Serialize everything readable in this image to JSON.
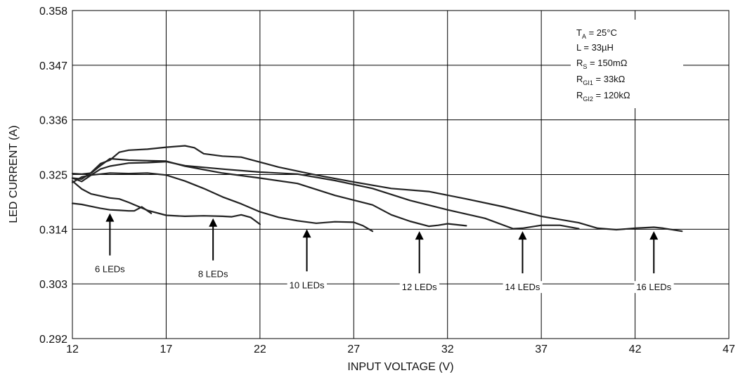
{
  "chart_data": {
    "type": "line",
    "xlabel": "INPUT VOLTAGE (V)",
    "ylabel": "LED CURRENT (A)",
    "xlim": [
      12,
      47
    ],
    "ylim": [
      0.292,
      0.358
    ],
    "x_ticks": [
      "12",
      "17",
      "22",
      "27",
      "32",
      "37",
      "42",
      "47"
    ],
    "y_ticks": [
      "0.292",
      "0.303",
      "0.314",
      "0.325",
      "0.336",
      "0.347",
      "0.358"
    ],
    "grid": true,
    "line_color": "#222222",
    "conditions": [
      {
        "main": "T",
        "sub": "A",
        "rest": " = 25°C"
      },
      {
        "main": "L = 33µH",
        "sub": "",
        "rest": ""
      },
      {
        "main": "R",
        "sub": "S",
        "rest": " = 150mΩ"
      },
      {
        "main": "R",
        "sub": "GI1",
        "rest": " = 33kΩ"
      },
      {
        "main": "R",
        "sub": "GI2",
        "rest": " = 120kΩ"
      }
    ],
    "series": [
      {
        "name": "6 LEDs",
        "label_x": 14,
        "label_y": 0.3059,
        "points": [
          [
            12,
            0.3192
          ],
          [
            12.5,
            0.319
          ],
          [
            13,
            0.3186
          ],
          [
            13.5,
            0.3182
          ],
          [
            14,
            0.3179
          ],
          [
            14.5,
            0.3178
          ],
          [
            15,
            0.3177
          ],
          [
            15.3,
            0.3177
          ],
          [
            15.7,
            0.3185
          ],
          [
            16.2,
            0.3172
          ]
        ]
      },
      {
        "name": "8 LEDs",
        "label_x": 19.5,
        "label_y": 0.3049,
        "points": [
          [
            12,
            0.3237
          ],
          [
            12.5,
            0.3221
          ],
          [
            13,
            0.3211
          ],
          [
            13.5,
            0.3207
          ],
          [
            14,
            0.3203
          ],
          [
            14.5,
            0.3201
          ],
          [
            15,
            0.3194
          ],
          [
            16,
            0.3178
          ],
          [
            17,
            0.3168
          ],
          [
            18,
            0.3166
          ],
          [
            19,
            0.3167
          ],
          [
            20,
            0.3166
          ],
          [
            20.5,
            0.3165
          ],
          [
            21,
            0.3169
          ],
          [
            21.5,
            0.3164
          ],
          [
            22,
            0.315
          ]
        ]
      },
      {
        "name": "10 LEDs",
        "label_x": 24.5,
        "label_y": 0.3027,
        "points": [
          [
            12,
            0.3234
          ],
          [
            12.5,
            0.3245
          ],
          [
            13,
            0.3249
          ],
          [
            13.5,
            0.3251
          ],
          [
            14,
            0.3253
          ],
          [
            15,
            0.3252
          ],
          [
            16,
            0.3253
          ],
          [
            17,
            0.3249
          ],
          [
            18,
            0.3237
          ],
          [
            19,
            0.3222
          ],
          [
            20,
            0.3205
          ],
          [
            21,
            0.3191
          ],
          [
            22,
            0.3175
          ],
          [
            23,
            0.3164
          ],
          [
            24,
            0.3157
          ],
          [
            25,
            0.3152
          ],
          [
            26,
            0.3155
          ],
          [
            27,
            0.3154
          ],
          [
            27.5,
            0.3147
          ],
          [
            28,
            0.3136
          ]
        ]
      },
      {
        "name": "12 LEDs",
        "label_x": 30.5,
        "label_y": 0.3023,
        "points": [
          [
            12,
            0.3252
          ],
          [
            12.5,
            0.3251
          ],
          [
            13,
            0.3253
          ],
          [
            13.5,
            0.3268
          ],
          [
            14,
            0.3282
          ],
          [
            15,
            0.3279
          ],
          [
            16,
            0.3278
          ],
          [
            17,
            0.3277
          ],
          [
            18,
            0.3267
          ],
          [
            20,
            0.3253
          ],
          [
            22,
            0.3243
          ],
          [
            24,
            0.3232
          ],
          [
            26,
            0.3208
          ],
          [
            28,
            0.3189
          ],
          [
            29,
            0.3169
          ],
          [
            30,
            0.3156
          ],
          [
            31,
            0.3146
          ],
          [
            31.5,
            0.3148
          ],
          [
            32,
            0.3151
          ],
          [
            33,
            0.3147
          ]
        ]
      },
      {
        "name": "14 LEDs",
        "label_x": 36,
        "label_y": 0.3023,
        "points": [
          [
            12,
            0.3243
          ],
          [
            12.5,
            0.3236
          ],
          [
            13,
            0.3249
          ],
          [
            13.5,
            0.3261
          ],
          [
            14,
            0.3267
          ],
          [
            15,
            0.3273
          ],
          [
            16,
            0.3274
          ],
          [
            17,
            0.3276
          ],
          [
            18,
            0.3268
          ],
          [
            20,
            0.3261
          ],
          [
            22,
            0.3255
          ],
          [
            24,
            0.3251
          ],
          [
            26,
            0.3238
          ],
          [
            28,
            0.3222
          ],
          [
            30,
            0.3198
          ],
          [
            32,
            0.3179
          ],
          [
            34,
            0.3162
          ],
          [
            35.5,
            0.3141
          ],
          [
            36,
            0.3142
          ],
          [
            37,
            0.3148
          ],
          [
            38,
            0.3148
          ],
          [
            39,
            0.3141
          ]
        ]
      },
      {
        "name": "16 LEDs",
        "label_x": 43,
        "label_y": 0.3023,
        "points": [
          [
            12,
            0.3243
          ],
          [
            12.5,
            0.3241
          ],
          [
            13,
            0.3254
          ],
          [
            13.5,
            0.3272
          ],
          [
            14,
            0.3279
          ],
          [
            14.5,
            0.3295
          ],
          [
            15,
            0.3299
          ],
          [
            16,
            0.3301
          ],
          [
            17,
            0.3305
          ],
          [
            18,
            0.3308
          ],
          [
            18.5,
            0.3304
          ],
          [
            19,
            0.3292
          ],
          [
            20,
            0.3287
          ],
          [
            21,
            0.3285
          ],
          [
            22,
            0.3275
          ],
          [
            23,
            0.3265
          ],
          [
            25,
            0.3249
          ],
          [
            27,
            0.3235
          ],
          [
            29,
            0.3222
          ],
          [
            31,
            0.3216
          ],
          [
            33,
            0.3201
          ],
          [
            35,
            0.3185
          ],
          [
            37,
            0.3166
          ],
          [
            39,
            0.3153
          ],
          [
            40,
            0.3142
          ],
          [
            41,
            0.3139
          ],
          [
            42,
            0.3142
          ],
          [
            43,
            0.3144
          ],
          [
            43.5,
            0.3142
          ],
          [
            44.5,
            0.3136
          ]
        ]
      }
    ]
  }
}
